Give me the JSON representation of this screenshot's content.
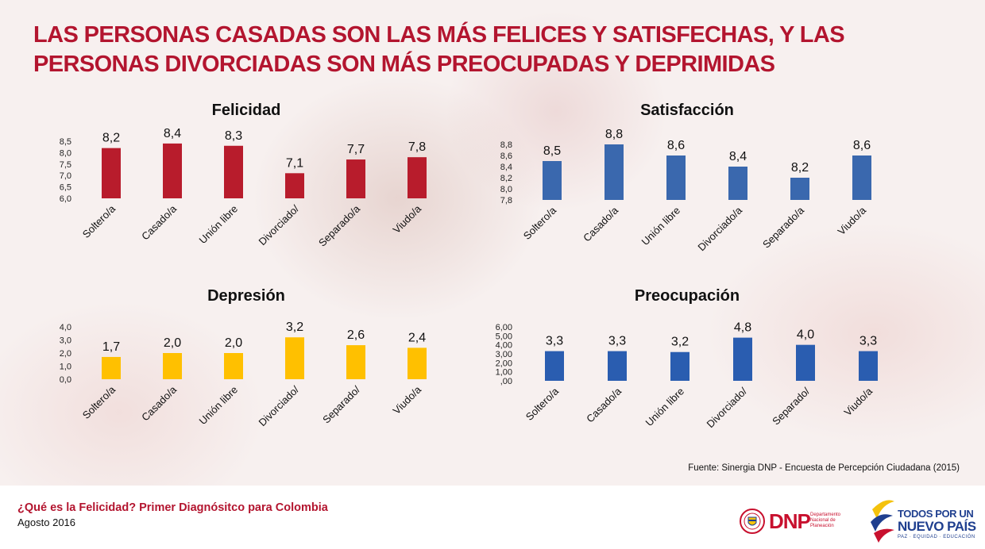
{
  "headline": "LAS PERSONAS CASADAS SON LAS MÁS FELICES Y SATISFECHAS, Y LAS PERSONAS DIVORCIADAS SON MÁS PREOCUPADAS Y DEPRIMIDAS",
  "source": "Fuente: Sinergia DNP - Encuesta de Percepción Ciudadana (2015)",
  "footer": {
    "title": "¿Qué es la Felicidad? Primer Diagnósitco para Colombia",
    "date": "Agosto 2016"
  },
  "logos": {
    "dnp_word": "DNP",
    "dnp_sub": "Departamento Nacional de Planeación",
    "tp_line1": "TODOS POR UN",
    "tp_line2": "NUEVO PAÍS",
    "tp_line3": "PAZ · EQUIDAD · EDUCACIÓN"
  },
  "colors": {
    "headline": "#b3152f",
    "felicidad": "#b81c2c",
    "satisfaccion": "#3a68ae",
    "depresion": "#ffc000",
    "preocupacion": "#2a5db0"
  },
  "chart_data": [
    {
      "type": "bar",
      "title": "Felicidad",
      "categories": [
        "Soltero/a",
        "Casado/a",
        "Unión libre",
        "Divorciado/",
        "Separado/a",
        "Viudo/a"
      ],
      "values": [
        8.2,
        8.4,
        8.3,
        7.1,
        7.7,
        7.8
      ],
      "value_labels": [
        "8,2",
        "8,4",
        "8,3",
        "7,1",
        "7,7",
        "7,8"
      ],
      "ylim": [
        6.0,
        8.5
      ],
      "yticks": [
        6.0,
        6.5,
        7.0,
        7.5,
        8.0,
        8.5
      ],
      "ytick_labels": [
        "6,0",
        "6,5",
        "7,0",
        "7,5",
        "8,0",
        "8,5"
      ],
      "color": "#b81c2c"
    },
    {
      "type": "bar",
      "title": "Satisfacción",
      "categories": [
        "Soltero/a",
        "Casado/a",
        "Unión libre",
        "Divorciado/a",
        "Separado/a",
        "Viudo/a"
      ],
      "values": [
        8.5,
        8.8,
        8.6,
        8.4,
        8.2,
        8.6
      ],
      "value_labels": [
        "8,5",
        "8,8",
        "8,6",
        "8,4",
        "8,2",
        "8,6"
      ],
      "ylim": [
        7.8,
        8.8
      ],
      "yticks": [
        7.8,
        8.0,
        8.2,
        8.4,
        8.6,
        8.8
      ],
      "ytick_labels": [
        "7,8",
        "8,0",
        "8,2",
        "8,4",
        "8,6",
        "8,8"
      ],
      "color": "#3a68ae"
    },
    {
      "type": "bar",
      "title": "Depresión",
      "categories": [
        "Soltero/a",
        "Casado/a",
        "Unión libre",
        "Divorciado/",
        "Separado/",
        "Viudo/a"
      ],
      "values": [
        1.7,
        2.0,
        2.0,
        3.2,
        2.6,
        2.4
      ],
      "value_labels": [
        "1,7",
        "2,0",
        "2,0",
        "3,2",
        "2,6",
        "2,4"
      ],
      "ylim": [
        0.0,
        4.0
      ],
      "yticks": [
        0.0,
        1.0,
        2.0,
        3.0,
        4.0
      ],
      "ytick_labels": [
        "0,0",
        "1,0",
        "2,0",
        "3,0",
        "4,0"
      ],
      "color": "#ffc000"
    },
    {
      "type": "bar",
      "title": "Preocupación",
      "categories": [
        "Soltero/a",
        "Casado/a",
        "Unión libre",
        "Divorciado/",
        "Separado/",
        "Viudo/a"
      ],
      "values": [
        3.3,
        3.3,
        3.2,
        4.8,
        4.0,
        3.3
      ],
      "value_labels": [
        "3,3",
        "3,3",
        "3,2",
        "4,8",
        "4,0",
        "3,3"
      ],
      "ylim": [
        0.0,
        6.0
      ],
      "yticks": [
        0,
        1,
        2,
        3,
        4,
        5,
        6
      ],
      "ytick_labels": [
        ",00",
        "1,00",
        "2,00",
        "3,00",
        "4,00",
        "5,00",
        "6,00"
      ],
      "color": "#2a5db0"
    }
  ]
}
